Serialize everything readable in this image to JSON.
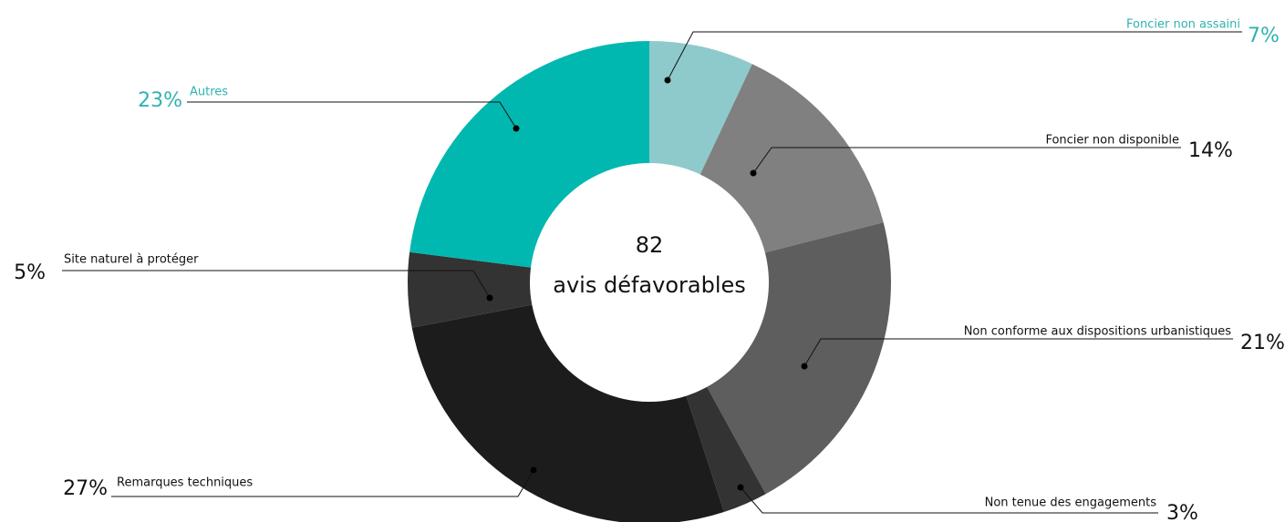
{
  "chart_data": {
    "type": "donut",
    "center_value": 82,
    "center_label": "avis défavorables",
    "categories": [
      "Foncier non assaini",
      "Foncier non disponible",
      "Non conforme aux dispositions urbanistiques",
      "Non tenue des engagements",
      "Remarques techniques",
      "Site naturel à protéger",
      "Autres"
    ],
    "values": [
      7,
      14,
      21,
      3,
      27,
      5,
      23
    ],
    "value_labels": [
      "7%",
      "14%",
      "21%",
      "3%",
      "27%",
      "5%",
      "23%"
    ],
    "colors": [
      "#8ecacb",
      "#808080",
      "#5e5e5e",
      "#333333",
      "#1c1c1c",
      "#333333",
      "#00b8b0"
    ]
  }
}
